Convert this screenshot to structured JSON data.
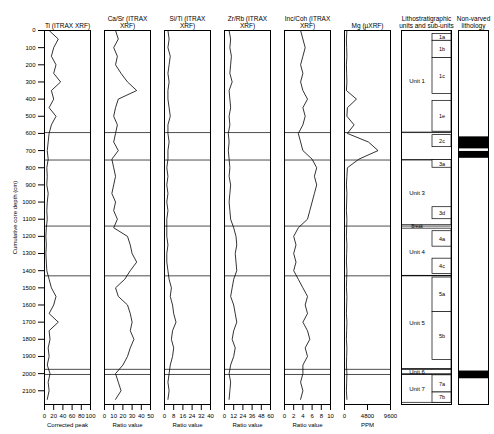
{
  "chart_data": {
    "type": "line",
    "depth_label": "Cumulative core depth (cm)",
    "ylim": [
      0,
      2180
    ],
    "yticks": [
      0,
      100,
      200,
      300,
      400,
      500,
      600,
      700,
      800,
      900,
      1000,
      1100,
      1200,
      1300,
      1400,
      1500,
      1600,
      1700,
      1800,
      1900,
      2000,
      2100
    ],
    "depth": [
      0,
      50,
      100,
      150,
      200,
      250,
      300,
      350,
      400,
      450,
      500,
      550,
      600,
      650,
      700,
      750,
      800,
      850,
      900,
      950,
      1000,
      1050,
      1100,
      1150,
      1200,
      1250,
      1300,
      1350,
      1400,
      1450,
      1500,
      1550,
      1600,
      1650,
      1700,
      1750,
      1800,
      1850,
      1900,
      1950,
      2000,
      2050,
      2100,
      2150
    ],
    "boundaries": [
      595,
      755,
      1140,
      1430,
      1975,
      2005
    ],
    "panels": [
      {
        "title": "Ti (ITRAX XRF)",
        "xlabel": "Corrected peak",
        "xlim": [
          0,
          100
        ],
        "xticks": [
          0,
          20,
          40,
          60,
          80,
          100
        ],
        "color": "#000000",
        "values": [
          10,
          30,
          20,
          15,
          25,
          20,
          35,
          15,
          20,
          10,
          25,
          15,
          10,
          8,
          6,
          8,
          5,
          6,
          5,
          8,
          6,
          5,
          6,
          4,
          3,
          4,
          3,
          4,
          5,
          10,
          15,
          25,
          20,
          10,
          30,
          10,
          12,
          8,
          10,
          6,
          12,
          8,
          10,
          6
        ]
      },
      {
        "title": "Ca/Sr (ITRAX XRF)",
        "xlabel": "Ratio value",
        "xlim": [
          0,
          50
        ],
        "xticks": [
          0,
          10,
          20,
          30,
          40,
          50
        ],
        "color": "#000000",
        "values": [
          12,
          15,
          10,
          14,
          12,
          18,
          25,
          35,
          15,
          12,
          10,
          14,
          12,
          10,
          15,
          8,
          10,
          12,
          10,
          8,
          12,
          10,
          14,
          10,
          25,
          28,
          30,
          35,
          28,
          22,
          12,
          15,
          25,
          28,
          30,
          28,
          32,
          28,
          25,
          20,
          12,
          15,
          18,
          12
        ]
      },
      {
        "title": "Si/Ti (ITRAX XRF)",
        "xlabel": "Ratio value",
        "xlim": [
          0,
          40
        ],
        "xticks": [
          0,
          8,
          16,
          24,
          32,
          40
        ],
        "color": "#000000",
        "values": [
          3,
          4,
          3,
          5,
          4,
          3,
          4,
          3,
          3,
          4,
          5,
          3,
          3,
          4,
          3,
          3,
          2,
          3,
          2,
          3,
          2,
          3,
          2,
          2,
          2,
          3,
          2,
          2,
          3,
          4,
          6,
          5,
          7,
          8,
          10,
          7,
          6,
          8,
          7,
          5,
          4,
          3,
          4,
          3
        ]
      },
      {
        "title": "Zr/Rb (ITRAX XRF)",
        "xlabel": "Ratio value",
        "xlim": [
          0,
          60
        ],
        "xticks": [
          0,
          12,
          24,
          36,
          48,
          60
        ],
        "color": "#000000",
        "values": [
          6,
          8,
          7,
          9,
          8,
          7,
          10,
          6,
          7,
          8,
          6,
          7,
          5,
          6,
          5,
          6,
          7,
          6,
          8,
          7,
          6,
          7,
          8,
          12,
          15,
          16,
          14,
          15,
          16,
          12,
          10,
          8,
          12,
          14,
          16,
          12,
          10,
          14,
          12,
          8,
          6,
          8,
          7,
          6
        ]
      },
      {
        "title": "Inc/Coh (ITRAX XRF)",
        "xlabel": "Ratio value",
        "xlim": [
          0,
          10
        ],
        "xticks": [
          0,
          2,
          4,
          6,
          8,
          10
        ],
        "color": "#000000",
        "values": [
          3.5,
          4,
          4.5,
          4,
          3.5,
          4,
          3.5,
          4,
          5,
          4,
          4.5,
          4,
          3,
          3.5,
          4,
          6,
          7,
          6.5,
          7,
          6.5,
          6,
          5.5,
          5,
          3,
          2,
          2.5,
          2,
          2.5,
          2,
          3,
          4,
          5,
          4.5,
          5,
          4,
          5,
          5.5,
          4.5,
          5,
          4,
          4,
          3.5,
          4,
          3.5
        ]
      },
      {
        "title": "Mg (µXRF)",
        "xlabel": "PPM",
        "xlim": [
          0,
          9600
        ],
        "xticks": [
          0,
          4800,
          9600
        ],
        "color": "#000000",
        "values": [
          500,
          400,
          450,
          500,
          400,
          450,
          500,
          400,
          2500,
          600,
          500,
          2000,
          600,
          5000,
          7000,
          3000,
          600,
          500,
          400,
          500,
          450,
          400,
          500,
          450,
          400,
          500,
          450,
          400,
          500,
          450,
          400,
          500,
          450,
          400,
          500,
          450,
          400,
          500,
          450,
          400,
          500,
          450,
          400,
          500
        ]
      }
    ],
    "units_title": "Lithostratigraphic units and sub-units",
    "units": [
      {
        "label": "Unit 1",
        "top": 0,
        "bottom": 595
      },
      {
        "label": "Unit 3",
        "top": 755,
        "bottom": 1135
      },
      {
        "label": "Unit 4",
        "top": 1155,
        "bottom": 1430
      },
      {
        "label": "Unit 5",
        "top": 1430,
        "bottom": 1975
      },
      {
        "label": "Unit 6",
        "top": 1975,
        "bottom": 2005
      },
      {
        "label": "Unit 7",
        "top": 2005,
        "bottom": 2170
      }
    ],
    "break": {
      "label": "Break",
      "depth": 1145
    },
    "sub_units": [
      {
        "label": "1a",
        "top": 20,
        "bottom": 60
      },
      {
        "label": "1b",
        "top": 60,
        "bottom": 160
      },
      {
        "label": "1c",
        "top": 160,
        "bottom": 370
      },
      {
        "label": "1e",
        "top": 410,
        "bottom": 590
      },
      {
        "label": "2c",
        "top": 610,
        "bottom": 680
      },
      {
        "label": "3a",
        "top": 755,
        "bottom": 800
      },
      {
        "label": "3d",
        "top": 1030,
        "bottom": 1100
      },
      {
        "label": "4a",
        "top": 1170,
        "bottom": 1260
      },
      {
        "label": "4c",
        "top": 1330,
        "bottom": 1420
      },
      {
        "label": "5a",
        "top": 1440,
        "bottom": 1640
      },
      {
        "label": "5b",
        "top": 1640,
        "bottom": 1920
      },
      {
        "label": "7a",
        "top": 2010,
        "bottom": 2110
      },
      {
        "label": "7b",
        "top": 2110,
        "bottom": 2170
      }
    ],
    "non_varved_title": "Non-varved lithology",
    "non_varved": [
      {
        "top": 620,
        "bottom": 690
      },
      {
        "top": 705,
        "bottom": 745
      },
      {
        "top": 1985,
        "bottom": 2030
      }
    ]
  }
}
